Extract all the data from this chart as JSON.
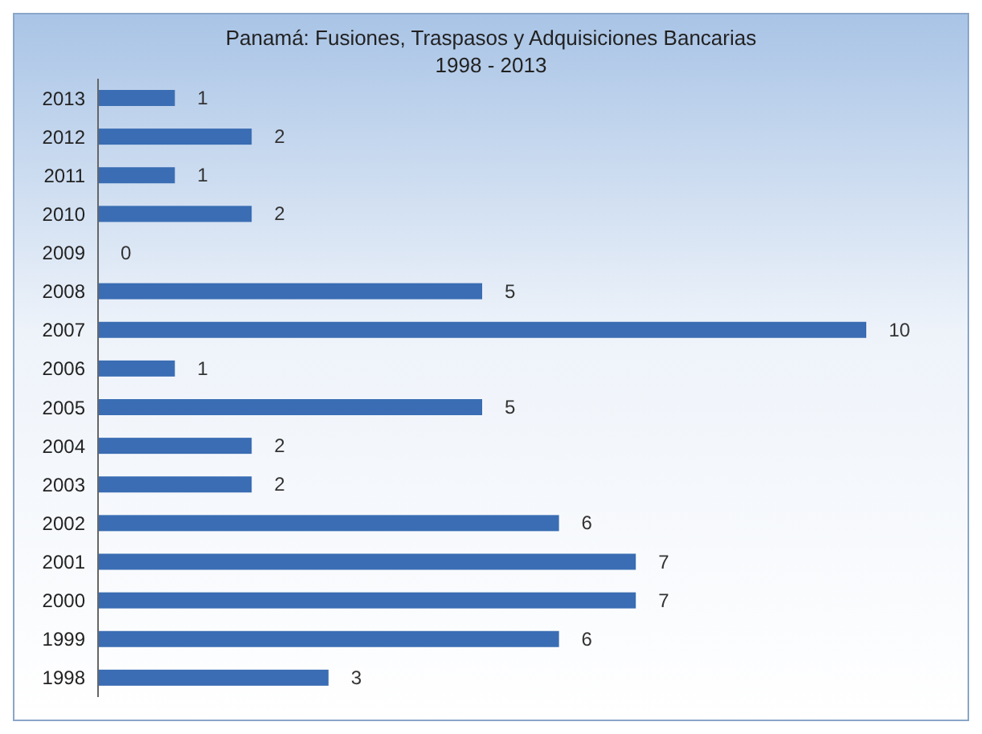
{
  "chart_data": {
    "type": "bar",
    "orientation": "horizontal",
    "title": "Panamá: Fusiones, Traspasos y Adquisiciones Bancarias",
    "subtitle": "1998 - 2013",
    "categories": [
      "2013",
      "2012",
      "2011",
      "2010",
      "2009",
      "2008",
      "2007",
      "2006",
      "2005",
      "2004",
      "2003",
      "2002",
      "2001",
      "2000",
      "1999",
      "1998"
    ],
    "values": [
      1,
      2,
      1,
      2,
      0,
      5,
      10,
      1,
      5,
      2,
      2,
      6,
      7,
      7,
      6,
      3
    ],
    "color": "#3a6db3",
    "data_labels": true
  }
}
